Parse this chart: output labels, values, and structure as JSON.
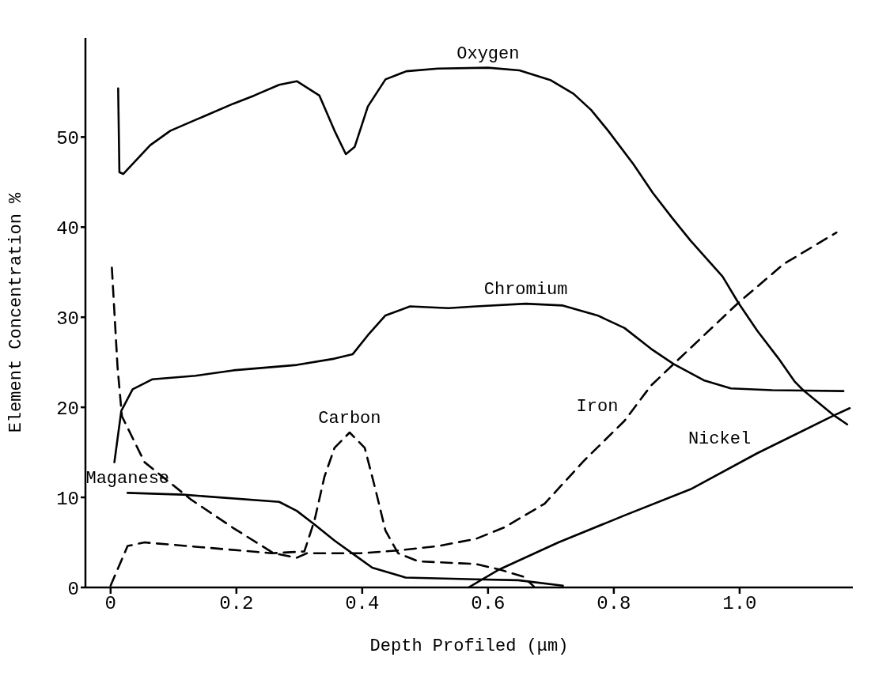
{
  "chart_data": {
    "type": "line",
    "xlabel": "Depth Profiled (μm)",
    "ylabel": "Element Concentration %",
    "xlim": [
      -0.04,
      1.18
    ],
    "ylim": [
      0,
      61
    ],
    "xticks": [
      0,
      0.2,
      0.4,
      0.6,
      0.8,
      {
        "value": 1,
        "label": "1.0"
      }
    ],
    "yticks": [
      0,
      10,
      20,
      30,
      40,
      50
    ],
    "grid": false,
    "marker": "none",
    "series": [
      {
        "name": "Oxygen",
        "color": "#000000",
        "line_style": "solid",
        "x": [
          0.012,
          0.014,
          0.02,
          0.063,
          0.095,
          0.135,
          0.195,
          0.228,
          0.268,
          0.296,
          0.332,
          0.356,
          0.374,
          0.388,
          0.409,
          0.437,
          0.47,
          0.52,
          0.6,
          0.65,
          0.7,
          0.736,
          0.764,
          0.791,
          0.831,
          0.862,
          0.893,
          0.922,
          0.973,
          0.998,
          1.028,
          1.062,
          1.087,
          1.101,
          1.15,
          1.171
        ],
        "values": [
          55.4,
          46.1,
          45.9,
          49.1,
          50.7,
          51.9,
          53.7,
          54.6,
          55.8,
          56.2,
          54.6,
          50.7,
          48.1,
          48.9,
          53.4,
          56.4,
          57.3,
          57.6,
          57.7,
          57.4,
          56.3,
          54.8,
          53,
          50.7,
          47,
          43.8,
          41,
          38.5,
          34.5,
          31.6,
          28.5,
          25.4,
          22.9,
          21.9,
          19.1,
          18.1
        ]
      },
      {
        "name": "Chromium",
        "color": "#000000",
        "line_style": "solid",
        "x": [
          0.006,
          0.017,
          0.035,
          0.066,
          0.135,
          0.195,
          0.296,
          0.356,
          0.385,
          0.409,
          0.437,
          0.476,
          0.537,
          0.581,
          0.66,
          0.719,
          0.774,
          0.817,
          0.859,
          0.895,
          0.943,
          0.986,
          1.052,
          1.165
        ],
        "values": [
          13.9,
          19.6,
          22,
          23.1,
          23.5,
          24.1,
          24.7,
          25.4,
          25.9,
          28,
          30.2,
          31.2,
          31,
          31.2,
          31.5,
          31.3,
          30.2,
          28.8,
          26.5,
          24.8,
          23,
          22.1,
          21.9,
          21.8
        ]
      },
      {
        "name": "Iron",
        "color": "#000000",
        "line_style": "dashed",
        "x": [
          0.002,
          0.011,
          0.018,
          0.054,
          0.127,
          0.195,
          0.259,
          0.296,
          0.312,
          0.397,
          0.457,
          0.521,
          0.581,
          0.627,
          0.69,
          0.753,
          0.817,
          0.859,
          0.895,
          0.998,
          1.07,
          1.154
        ],
        "values": [
          35.5,
          24.5,
          19,
          13.9,
          9.8,
          6.6,
          3.8,
          3.3,
          3.8,
          3.8,
          4.1,
          4.6,
          5.4,
          6.7,
          9.3,
          14.1,
          18.5,
          22.4,
          24.8,
          31.6,
          35.9,
          39.4
        ]
      },
      {
        "name": "Carbon",
        "color": "#000000",
        "line_style": "dashed",
        "x": [
          0,
          0.027,
          0.054,
          0.156,
          0.256,
          0.308,
          0.324,
          0.34,
          0.356,
          0.38,
          0.404,
          0.421,
          0.437,
          0.457,
          0.489,
          0.581,
          0.618,
          0.656,
          0.673
        ],
        "values": [
          0.2,
          4.6,
          5,
          4.4,
          3.8,
          4,
          7.4,
          12.3,
          15.5,
          17.2,
          15.5,
          10.9,
          6.3,
          3.8,
          2.9,
          2.6,
          2,
          1.2,
          0.1
        ]
      },
      {
        "name": "Maganese",
        "color": "#000000",
        "line_style": "solid",
        "x": [
          0.027,
          0.115,
          0.268,
          0.296,
          0.324,
          0.356,
          0.386,
          0.416,
          0.469,
          0.581,
          0.648,
          0.719
        ],
        "values": [
          10.5,
          10.3,
          9.5,
          8.5,
          7,
          5.2,
          3.7,
          2.2,
          1.1,
          0.9,
          0.8,
          0.2
        ]
      },
      {
        "name": "Nickel",
        "color": "#000000",
        "line_style": "solid",
        "x": [
          0.569,
          0.618,
          0.712,
          0.817,
          0.922,
          1.028,
          1.15,
          1.175
        ],
        "values": [
          0,
          2,
          5,
          8,
          10.9,
          14.9,
          19.1,
          19.9
        ]
      }
    ]
  }
}
